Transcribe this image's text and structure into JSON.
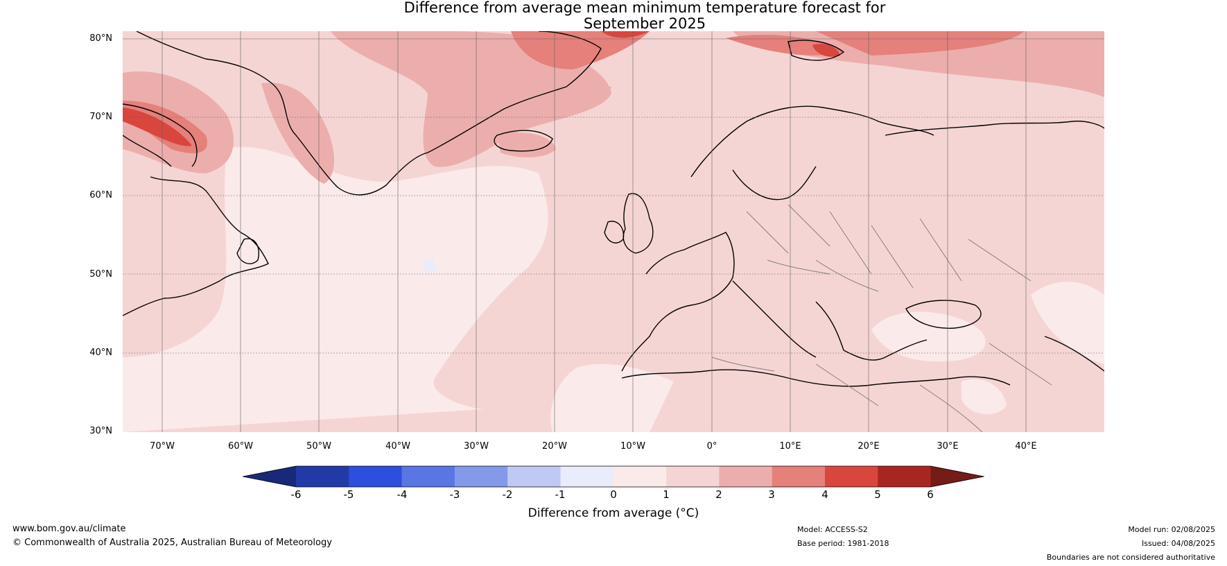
{
  "title": {
    "line1": "Difference from average mean minimum temperature forecast for",
    "line2": "September 2025"
  },
  "map": {
    "lat_labels": [
      "80°N",
      "70°N",
      "60°N",
      "50°N",
      "40°N",
      "30°N"
    ],
    "lon_labels": [
      "70°W",
      "60°W",
      "50°W",
      "40°W",
      "30°W",
      "20°W",
      "10°W",
      "0°",
      "10°E",
      "20°E",
      "30°E",
      "40°E"
    ],
    "lat_range": [
      30,
      81
    ],
    "lon_range": [
      -75,
      50
    ],
    "base_color": "#f5d5d4"
  },
  "colorbar": {
    "ticks": [
      "-6",
      "-5",
      "-4",
      "-3",
      "-2",
      "-1",
      "0",
      "1",
      "2",
      "3",
      "4",
      "5",
      "6"
    ],
    "colors": [
      "#18297a",
      "#223aa8",
      "#2e4fdd",
      "#5a75e4",
      "#8599eb",
      "#c0c9f3",
      "#e8ecfb",
      "#fbeaea",
      "#f5d5d4",
      "#ecaeac",
      "#e5807b",
      "#d8463e",
      "#a82621",
      "#751b18"
    ],
    "label": "Difference from average (°C)"
  },
  "footer": {
    "website": "www.bom.gov.au/climate",
    "copyright": "© Commonwealth of Australia 2025, Australian Bureau of Meteorology",
    "model": "Model: ACCESS-S2",
    "base_period": "Base period: 1981-2018",
    "model_run": "Model run: 02/08/2025",
    "issued": "Issued: 04/08/2025",
    "disclaimer": "Boundaries are not considered authoritative"
  }
}
